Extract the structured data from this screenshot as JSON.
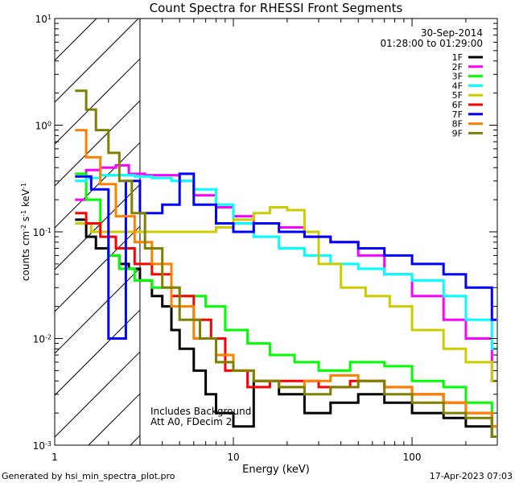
{
  "chart_data": {
    "type": "line",
    "title": "Count Spectra for RHESSI Front Segments",
    "xlabel": "Energy (keV)",
    "ylabel_parts": {
      "main": "counts cm",
      "exp1": "-2",
      "mid1": " s",
      "exp2": "-1",
      "mid2": " keV",
      "exp3": "-1"
    },
    "xscale": "log",
    "yscale": "log",
    "xlim": [
      1,
      300
    ],
    "ylim": [
      0.001,
      10
    ],
    "x_ticks": [
      "1",
      "10",
      "100"
    ],
    "y_ticks": [
      {
        "base": "10",
        "exp": "-3",
        "value": 0.001
      },
      {
        "base": "10",
        "exp": "-2",
        "value": 0.01
      },
      {
        "base": "10",
        "exp": "-1",
        "value": 0.1
      },
      {
        "base": "10",
        "exp": "0",
        "value": 1
      },
      {
        "base": "10",
        "exp": "1",
        "value": 10
      }
    ],
    "date": "30-Sep-2014",
    "time_range": "01:28:00 to 01:29:00",
    "annotation_lines": [
      "Includes Background",
      "Att A0, FDecim 2"
    ],
    "attenuated_region_upper_kev": 3,
    "footer_left": "Generated by hsi_min_spectra_plot.pro",
    "footer_right": "17-Apr-2023 07:03",
    "legend_position": "top-right",
    "series": [
      {
        "name": "1F",
        "color": "#000000",
        "points": [
          [
            1.3,
            0.13
          ],
          [
            1.5,
            0.09
          ],
          [
            1.7,
            0.07
          ],
          [
            2.0,
            0.06
          ],
          [
            2.3,
            0.05
          ],
          [
            2.6,
            0.045
          ],
          [
            3.0,
            0.035
          ],
          [
            3.5,
            0.025
          ],
          [
            4.0,
            0.02
          ],
          [
            4.5,
            0.012
          ],
          [
            5.0,
            0.008
          ],
          [
            6.0,
            0.005
          ],
          [
            7.0,
            0.003
          ],
          [
            8.0,
            0.002
          ],
          [
            10,
            0.0015
          ],
          [
            13,
            0.004
          ],
          [
            18,
            0.003
          ],
          [
            25,
            0.002
          ],
          [
            35,
            0.0025
          ],
          [
            50,
            0.003
          ],
          [
            70,
            0.0025
          ],
          [
            100,
            0.002
          ],
          [
            150,
            0.0018
          ],
          [
            200,
            0.0015
          ],
          [
            280,
            0.0012
          ]
        ]
      },
      {
        "name": "2F",
        "color": "#ff00ff",
        "points": [
          [
            1.3,
            0.2
          ],
          [
            1.5,
            0.38
          ],
          [
            1.8,
            0.4
          ],
          [
            2.2,
            0.42
          ],
          [
            2.6,
            0.35
          ],
          [
            3.2,
            0.34
          ],
          [
            4.0,
            0.34
          ],
          [
            5.0,
            0.3
          ],
          [
            6.0,
            0.22
          ],
          [
            8.0,
            0.17
          ],
          [
            10,
            0.14
          ],
          [
            13,
            0.12
          ],
          [
            18,
            0.11
          ],
          [
            25,
            0.09
          ],
          [
            35,
            0.08
          ],
          [
            50,
            0.06
          ],
          [
            70,
            0.04
          ],
          [
            100,
            0.025
          ],
          [
            150,
            0.015
          ],
          [
            200,
            0.01
          ],
          [
            280,
            0.004
          ]
        ]
      },
      {
        "name": "3F",
        "color": "#00ff00",
        "points": [
          [
            1.3,
            0.35
          ],
          [
            1.5,
            0.2
          ],
          [
            1.8,
            0.1
          ],
          [
            2.0,
            0.06
          ],
          [
            2.3,
            0.045
          ],
          [
            2.8,
            0.035
          ],
          [
            3.5,
            0.03
          ],
          [
            5.0,
            0.025
          ],
          [
            7.0,
            0.02
          ],
          [
            9.0,
            0.012
          ],
          [
            12,
            0.009
          ],
          [
            16,
            0.007
          ],
          [
            22,
            0.006
          ],
          [
            30,
            0.005
          ],
          [
            45,
            0.006
          ],
          [
            70,
            0.0055
          ],
          [
            100,
            0.004
          ],
          [
            150,
            0.0035
          ],
          [
            200,
            0.0025
          ],
          [
            280,
            0.0015
          ]
        ]
      },
      {
        "name": "4F",
        "color": "#00ffff",
        "points": [
          [
            1.3,
            0.3
          ],
          [
            1.5,
            0.32
          ],
          [
            1.8,
            0.34
          ],
          [
            2.2,
            0.34
          ],
          [
            2.8,
            0.33
          ],
          [
            3.5,
            0.32
          ],
          [
            4.5,
            0.3
          ],
          [
            6.0,
            0.25
          ],
          [
            8.0,
            0.18
          ],
          [
            10,
            0.12
          ],
          [
            13,
            0.09
          ],
          [
            18,
            0.07
          ],
          [
            25,
            0.06
          ],
          [
            35,
            0.05
          ],
          [
            50,
            0.045
          ],
          [
            70,
            0.04
          ],
          [
            100,
            0.035
          ],
          [
            150,
            0.025
          ],
          [
            200,
            0.015
          ],
          [
            280,
            0.008
          ]
        ]
      },
      {
        "name": "5F",
        "color": "#cccc00",
        "points": [
          [
            1.3,
            0.12
          ],
          [
            1.6,
            0.1
          ],
          [
            2.0,
            0.1
          ],
          [
            2.5,
            0.1
          ],
          [
            3.2,
            0.1
          ],
          [
            4.0,
            0.1
          ],
          [
            5.0,
            0.1
          ],
          [
            6.5,
            0.1
          ],
          [
            8.0,
            0.11
          ],
          [
            10,
            0.13
          ],
          [
            13,
            0.15
          ],
          [
            16,
            0.17
          ],
          [
            20,
            0.16
          ],
          [
            25,
            0.1
          ],
          [
            30,
            0.05
          ],
          [
            40,
            0.03
          ],
          [
            55,
            0.025
          ],
          [
            75,
            0.02
          ],
          [
            100,
            0.012
          ],
          [
            150,
            0.008
          ],
          [
            200,
            0.006
          ],
          [
            280,
            0.004
          ]
        ]
      },
      {
        "name": "6F",
        "color": "#ff0000",
        "points": [
          [
            1.3,
            0.15
          ],
          [
            1.5,
            0.12
          ],
          [
            1.8,
            0.09
          ],
          [
            2.2,
            0.07
          ],
          [
            2.8,
            0.05
          ],
          [
            3.5,
            0.04
          ],
          [
            4.5,
            0.025
          ],
          [
            6.0,
            0.015
          ],
          [
            7.5,
            0.01
          ],
          [
            9.0,
            0.005
          ],
          [
            12,
            0.0035
          ],
          [
            16,
            0.004
          ],
          [
            22,
            0.004
          ],
          [
            30,
            0.0035
          ],
          [
            45,
            0.004
          ],
          [
            70,
            0.0035
          ],
          [
            100,
            0.003
          ],
          [
            150,
            0.0025
          ],
          [
            200,
            0.002
          ],
          [
            280,
            0.0015
          ]
        ]
      },
      {
        "name": "7F",
        "color": "#0000ff",
        "points": [
          [
            1.3,
            0.33
          ],
          [
            1.6,
            0.25
          ],
          [
            2.0,
            0.01
          ],
          [
            2.5,
            0.3
          ],
          [
            3.0,
            0.15
          ],
          [
            4.0,
            0.18
          ],
          [
            5.0,
            0.35
          ],
          [
            6.0,
            0.18
          ],
          [
            8.0,
            0.12
          ],
          [
            10,
            0.1
          ],
          [
            13,
            0.12
          ],
          [
            18,
            0.1
          ],
          [
            25,
            0.09
          ],
          [
            35,
            0.08
          ],
          [
            50,
            0.07
          ],
          [
            70,
            0.06
          ],
          [
            100,
            0.05
          ],
          [
            150,
            0.04
          ],
          [
            200,
            0.03
          ],
          [
            280,
            0.015
          ]
        ]
      },
      {
        "name": "8F",
        "color": "#ff8000",
        "points": [
          [
            1.3,
            0.9
          ],
          [
            1.5,
            0.5
          ],
          [
            1.8,
            0.28
          ],
          [
            2.2,
            0.14
          ],
          [
            2.8,
            0.08
          ],
          [
            3.5,
            0.05
          ],
          [
            4.5,
            0.02
          ],
          [
            6.0,
            0.01
          ],
          [
            8.0,
            0.007
          ],
          [
            10,
            0.005
          ],
          [
            13,
            0.004
          ],
          [
            18,
            0.0035
          ],
          [
            25,
            0.004
          ],
          [
            35,
            0.0045
          ],
          [
            50,
            0.004
          ],
          [
            70,
            0.0035
          ],
          [
            100,
            0.003
          ],
          [
            150,
            0.0025
          ],
          [
            200,
            0.002
          ],
          [
            280,
            0.0015
          ]
        ]
      },
      {
        "name": "9F",
        "color": "#808000",
        "points": [
          [
            1.3,
            2.1
          ],
          [
            1.5,
            1.4
          ],
          [
            1.7,
            0.9
          ],
          [
            2.0,
            0.55
          ],
          [
            2.3,
            0.3
          ],
          [
            2.7,
            0.15
          ],
          [
            3.2,
            0.07
          ],
          [
            4.0,
            0.03
          ],
          [
            5.0,
            0.015
          ],
          [
            6.5,
            0.01
          ],
          [
            8.0,
            0.006
          ],
          [
            10,
            0.005
          ],
          [
            13,
            0.004
          ],
          [
            18,
            0.0035
          ],
          [
            25,
            0.003
          ],
          [
            35,
            0.0035
          ],
          [
            50,
            0.004
          ],
          [
            70,
            0.003
          ],
          [
            100,
            0.0025
          ],
          [
            150,
            0.002
          ],
          [
            200,
            0.0018
          ],
          [
            280,
            0.0012
          ]
        ]
      }
    ]
  }
}
